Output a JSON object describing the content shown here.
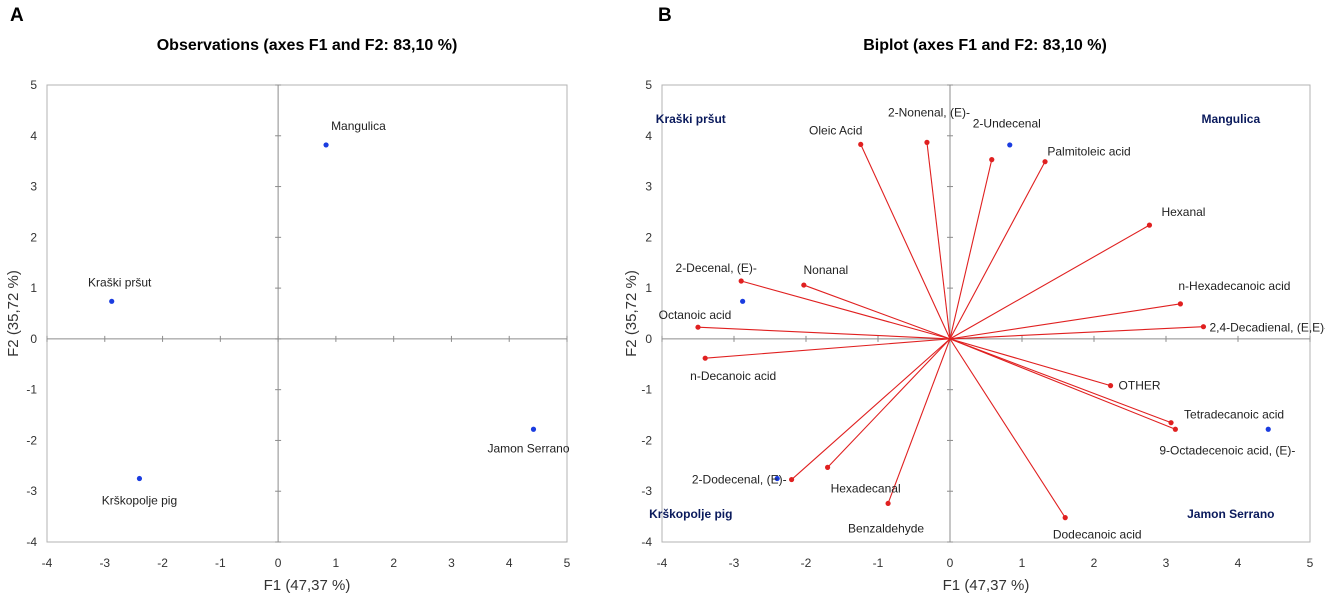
{
  "chart_data": [
    {
      "panel": "A",
      "type": "scatter",
      "title": "Observations (axes F1 and F2: 83,10 %)",
      "xlabel": "F1 (47,37 %)",
      "ylabel": "F2 (35,72 %)",
      "xlim": [
        -4,
        5
      ],
      "ylim": [
        -4,
        5
      ],
      "xticks": [
        "-4",
        "-3",
        "-2",
        "-1",
        "0",
        "1",
        "2",
        "3",
        "4",
        "5"
      ],
      "yticks": [
        "-4",
        "-3",
        "-2",
        "-1",
        "0",
        "1",
        "2",
        "3",
        "4",
        "5"
      ],
      "point_color": "#1a3ce0",
      "points": [
        {
          "label": "Mangulica",
          "x": 0.83,
          "y": 3.82
        },
        {
          "label": "Kraški pršut",
          "x": -2.88,
          "y": 0.74
        },
        {
          "label": "Krškopolje pig",
          "x": -2.4,
          "y": -2.75
        },
        {
          "label": "Jamon Serrano",
          "x": 4.42,
          "y": -1.78
        }
      ]
    },
    {
      "panel": "B",
      "type": "scatter",
      "title": "Biplot (axes F1 and F2: 83,10 %)",
      "xlabel": "F1 (47,37 %)",
      "ylabel": "F2 (35,72 %)",
      "xlim": [
        -4,
        5
      ],
      "ylim": [
        -4,
        5
      ],
      "xticks": [
        "-4",
        "-3",
        "-2",
        "-1",
        "0",
        "1",
        "2",
        "3",
        "4",
        "5"
      ],
      "yticks": [
        "-4",
        "-3",
        "-2",
        "-1",
        "0",
        "1",
        "2",
        "3",
        "4",
        "5"
      ],
      "observation_color": "#1a3ce0",
      "variable_color": "#e02020",
      "observations": [
        {
          "x": 0.83,
          "y": 3.82
        },
        {
          "x": -2.88,
          "y": 0.74
        },
        {
          "x": -2.4,
          "y": -2.75
        },
        {
          "x": 4.42,
          "y": -1.78
        }
      ],
      "quadrant_labels": [
        {
          "label": "Kraški pršut",
          "x": -3.6,
          "y": 4.25
        },
        {
          "label": "Mangulica",
          "x": 3.9,
          "y": 4.25
        },
        {
          "label": "Krškopolje pig",
          "x": -3.6,
          "y": -3.53
        },
        {
          "label": "Jamon Serrano",
          "x": 3.9,
          "y": -3.53
        }
      ],
      "variables": [
        {
          "label": "2-Nonenal, (E)-",
          "x": -0.32,
          "y": 3.87
        },
        {
          "label": "Oleic Acid",
          "x": -1.24,
          "y": 3.83
        },
        {
          "label": "2-Undecenal",
          "x": 0.58,
          "y": 3.53
        },
        {
          "label": "Palmitoleic acid",
          "x": 1.32,
          "y": 3.49
        },
        {
          "label": "Hexanal",
          "x": 2.77,
          "y": 2.24
        },
        {
          "label": "n-Hexadecanoic acid",
          "x": 3.2,
          "y": 0.69
        },
        {
          "label": "2,4-Decadienal, (E,E)-",
          "x": 3.52,
          "y": 0.24
        },
        {
          "label": "OTHER",
          "x": 2.23,
          "y": -0.92
        },
        {
          "label": "Tetradecanoic acid",
          "x": 3.07,
          "y": -1.65
        },
        {
          "label": "9-Octadecenoic acid, (E)-",
          "x": 3.13,
          "y": -1.78
        },
        {
          "label": "Dodecanoic acid",
          "x": 1.6,
          "y": -3.52
        },
        {
          "label": "Benzaldehyde",
          "x": -0.86,
          "y": -3.24
        },
        {
          "label": "Hexadecanal",
          "x": -1.7,
          "y": -2.53
        },
        {
          "label": "2-Dodecenal, (E)-",
          "x": -2.2,
          "y": -2.77
        },
        {
          "label": "n-Decanoic acid",
          "x": -3.4,
          "y": -0.38
        },
        {
          "label": "Octanoic acid",
          "x": -3.5,
          "y": 0.23
        },
        {
          "label": "2-Decenal, (E)-",
          "x": -2.9,
          "y": 1.14
        },
        {
          "label": "Nonanal",
          "x": -2.03,
          "y": 1.06
        }
      ]
    }
  ]
}
